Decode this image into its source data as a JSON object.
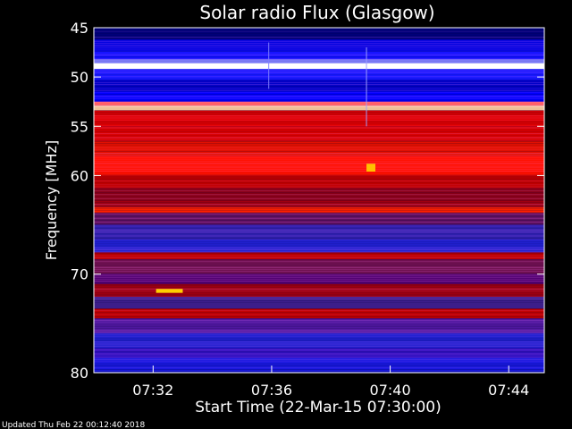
{
  "chart_data": {
    "type": "heatmap",
    "title": "Solar radio Flux (Glasgow)",
    "xlabel": "Start Time (22-Mar-15 07:30:00)",
    "ylabel": "Frequency [MHz]",
    "footer": "Updated Thu Feb 22 00:12:40 2018",
    "x_range_minutes": [
      0,
      15.2
    ],
    "x_ticks": [
      {
        "minute": 2,
        "label": "07:32"
      },
      {
        "minute": 6,
        "label": "07:36"
      },
      {
        "minute": 10,
        "label": "07:40"
      },
      {
        "minute": 14,
        "label": "07:44"
      }
    ],
    "y_range_mhz": [
      45,
      80
    ],
    "y_ticks": [
      {
        "mhz": 45,
        "label": "45"
      },
      {
        "mhz": 50,
        "label": "50"
      },
      {
        "mhz": 55,
        "label": "55"
      },
      {
        "mhz": 60,
        "label": "60"
      },
      {
        "mhz": 70,
        "label": "70"
      },
      {
        "mhz": 80,
        "label": "80"
      }
    ],
    "colormap": [
      "#000080",
      "#0000ff",
      "#6020a0",
      "#c00000",
      "#ff2000",
      "#ffff80"
    ],
    "bands": [
      {
        "from": 45.0,
        "to": 46.2,
        "color": "#00007a"
      },
      {
        "from": 46.2,
        "to": 47.3,
        "color": "#0000e0"
      },
      {
        "from": 47.3,
        "to": 48.2,
        "color": "#1010ff"
      },
      {
        "from": 48.2,
        "to": 48.6,
        "color": "#8080ff"
      },
      {
        "from": 48.6,
        "to": 49.2,
        "color": "#ffffff"
      },
      {
        "from": 49.2,
        "to": 50.3,
        "color": "#1818ff"
      },
      {
        "from": 50.3,
        "to": 51.5,
        "color": "#0000c8"
      },
      {
        "from": 51.5,
        "to": 52.5,
        "color": "#0000ff"
      },
      {
        "from": 52.5,
        "to": 52.9,
        "color": "#ff6060"
      },
      {
        "from": 52.9,
        "to": 53.4,
        "color": "#ffd0a0"
      },
      {
        "from": 53.4,
        "to": 55.0,
        "color": "#e00000"
      },
      {
        "from": 55.0,
        "to": 56.5,
        "color": "#d80000"
      },
      {
        "from": 56.5,
        "to": 58.0,
        "color": "#e41000"
      },
      {
        "from": 58.0,
        "to": 60.0,
        "color": "#ff1000"
      },
      {
        "from": 60.0,
        "to": 61.3,
        "color": "#c00000"
      },
      {
        "from": 61.3,
        "to": 62.5,
        "color": "#8a0018"
      },
      {
        "from": 62.5,
        "to": 63.2,
        "color": "#a00010"
      },
      {
        "from": 63.2,
        "to": 63.8,
        "color": "#ff2000"
      },
      {
        "from": 63.8,
        "to": 65.0,
        "color": "#601060"
      },
      {
        "from": 65.0,
        "to": 66.5,
        "color": "#3020b0"
      },
      {
        "from": 66.5,
        "to": 67.8,
        "color": "#2020d0"
      },
      {
        "from": 67.8,
        "to": 68.5,
        "color": "#c00000"
      },
      {
        "from": 68.5,
        "to": 70.0,
        "color": "#701050"
      },
      {
        "from": 70.0,
        "to": 71.0,
        "color": "#500070"
      },
      {
        "from": 71.0,
        "to": 72.3,
        "color": "#a00010"
      },
      {
        "from": 72.3,
        "to": 73.5,
        "color": "#402090"
      },
      {
        "from": 73.5,
        "to": 74.5,
        "color": "#c00000"
      },
      {
        "from": 74.5,
        "to": 76.0,
        "color": "#5018a0"
      },
      {
        "from": 76.0,
        "to": 77.5,
        "color": "#2020d0"
      },
      {
        "from": 77.5,
        "to": 78.5,
        "color": "#3010c0"
      },
      {
        "from": 78.5,
        "to": 80.0,
        "color": "#1818e0"
      }
    ],
    "features": [
      {
        "type": "burst",
        "minute_from": 9.2,
        "minute_to": 9.5,
        "mhz_from": 58.8,
        "mhz_to": 59.6,
        "color": "#ffc000"
      },
      {
        "type": "burst",
        "minute_from": 2.1,
        "minute_to": 3.0,
        "mhz_from": 71.5,
        "mhz_to": 71.9,
        "color": "#ffd000"
      },
      {
        "type": "vertical-streak",
        "minute": 9.2,
        "mhz_from": 47.0,
        "mhz_to": 55.0,
        "color": "#a0a0ff"
      },
      {
        "type": "vertical-streak",
        "minute": 5.9,
        "mhz_from": 46.5,
        "mhz_to": 51.2,
        "color": "#8080ff"
      }
    ],
    "grid": false,
    "legend": "none"
  }
}
